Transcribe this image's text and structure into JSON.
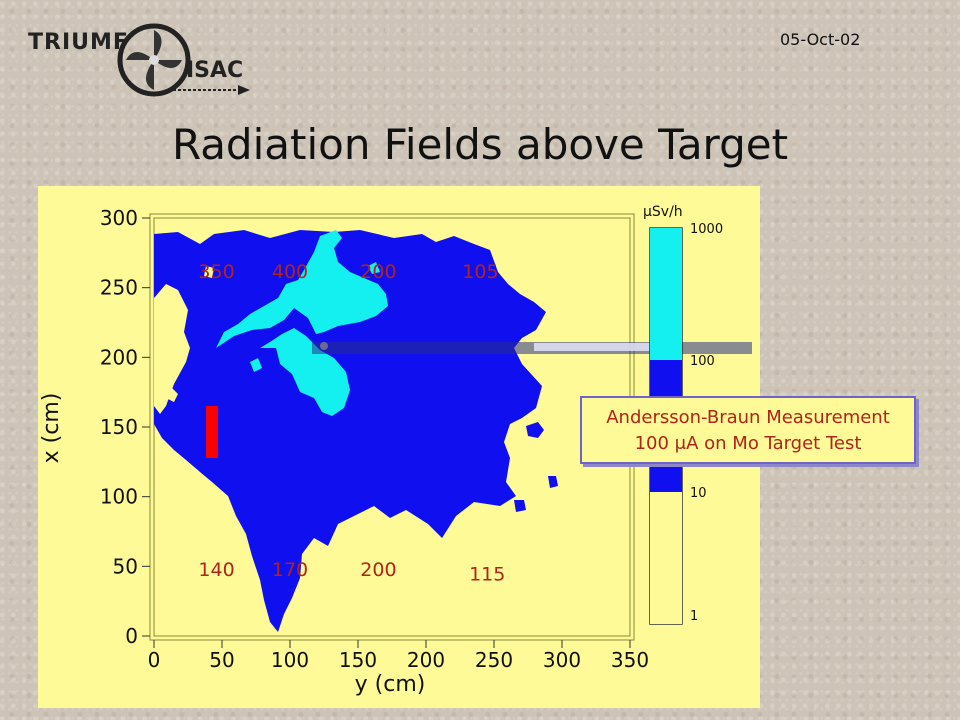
{
  "header": {
    "logo_text_1": "TRIUMF",
    "logo_text_2": "ISAC",
    "date": "05-Oct-02",
    "title": "Radiation Fields above Target"
  },
  "callout": {
    "line1": "Andersson-Braun Measurement",
    "line2": "100 μA on Mo Target Test"
  },
  "colors": {
    "background": "#fdfa97",
    "low_field": "#0f0ff0",
    "high_field": "#14f0f0",
    "annotation": "#b0241a",
    "probe_marker": "#ff0000"
  },
  "chart_data": {
    "type": "heatmap",
    "xlabel": "y (cm)",
    "ylabel": "x (cm)",
    "xlim": [
      0,
      350
    ],
    "ylim": [
      0,
      300
    ],
    "x_ticks": [
      "0",
      "50",
      "100",
      "150",
      "200",
      "250",
      "300",
      "350"
    ],
    "y_ticks": [
      "0",
      "50",
      "100",
      "150",
      "200",
      "250",
      "300"
    ],
    "colorbar": {
      "unit": "μSv/h",
      "scale": "log",
      "ticks": [
        "1",
        "10",
        "100",
        "1000"
      ],
      "levels": [
        {
          "from": 1,
          "to": 10,
          "color": "#fdfa97"
        },
        {
          "from": 10,
          "to": 100,
          "color": "#0f0ff0"
        },
        {
          "from": 100,
          "to": 1000,
          "color": "#14f0f0"
        }
      ]
    },
    "annotations": [
      {
        "text": "350",
        "x": 46,
        "y": 262
      },
      {
        "text": "400",
        "x": 100,
        "y": 262
      },
      {
        "text": "200",
        "x": 165,
        "y": 262
      },
      {
        "text": "105",
        "x": 240,
        "y": 262
      },
      {
        "text": "140",
        "x": 46,
        "y": 48
      },
      {
        "text": "170",
        "x": 100,
        "y": 48
      },
      {
        "text": "200",
        "x": 165,
        "y": 48
      },
      {
        "text": "115",
        "x": 245,
        "y": 45
      }
    ],
    "grid": false,
    "legend": "colorbar right"
  }
}
